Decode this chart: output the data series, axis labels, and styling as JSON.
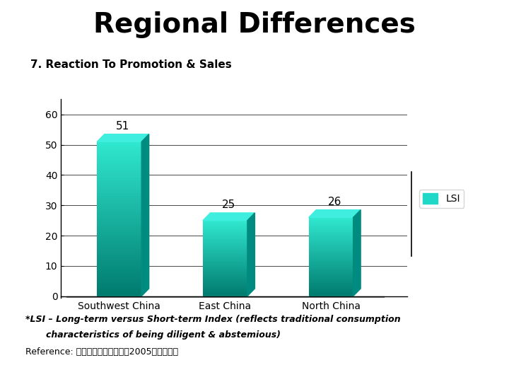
{
  "title": "Regional Differences",
  "subtitle": "7. Reaction To Promotion & Sales",
  "categories": [
    "Southwest China",
    "East China",
    "North China"
  ],
  "values": [
    51,
    25,
    26
  ],
  "bar_color_front_top": "#30E8D0",
  "bar_color_front_bottom": "#007B6E",
  "bar_color_top": "#40EEE0",
  "bar_color_side": "#008B80",
  "bar_floor_color": "#888888",
  "ylim": [
    0,
    65
  ],
  "yticks": [
    0,
    10,
    20,
    30,
    40,
    50,
    60
  ],
  "legend_label": "LSI",
  "legend_color": "#20D8C8",
  "footnote1": "*LSI – Long-term versus Short-term Index (reflects traditional consumption",
  "footnote2": "characteristics of being diligent & abstemious)",
  "reference": "Reference: 中国消费者行为报告（2005），庐泰宏",
  "background_color": "#ffffff",
  "title_fontsize": 28,
  "subtitle_fontsize": 11,
  "label_fontsize": 11,
  "tick_fontsize": 10
}
